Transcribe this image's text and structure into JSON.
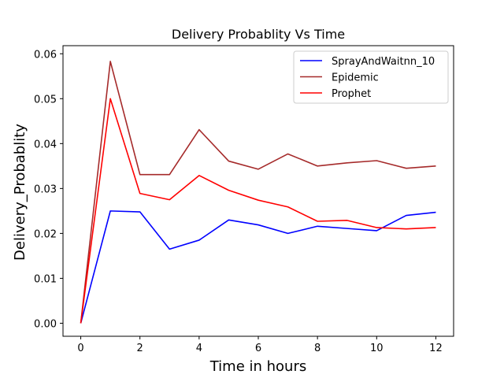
{
  "chart_data": {
    "type": "line",
    "title": "Delivery Probablity Vs Time",
    "xlabel": "Time in hours",
    "ylabel": "Delivery_Probablity",
    "xlim": [
      -0.6,
      12.6
    ],
    "ylim": [
      -0.0029,
      0.0618
    ],
    "xticks": [
      0,
      2,
      4,
      6,
      8,
      10,
      12
    ],
    "yticks": [
      0.0,
      0.01,
      0.02,
      0.03,
      0.04,
      0.05,
      0.06
    ],
    "ytick_labels": [
      "0.00",
      "0.01",
      "0.02",
      "0.03",
      "0.04",
      "0.05",
      "0.06"
    ],
    "grid": false,
    "legend_position": "top-right",
    "x": [
      0,
      1,
      2,
      3,
      4,
      5,
      6,
      7,
      8,
      9,
      10,
      11,
      12
    ],
    "series": [
      {
        "name": "SprayAndWaitnn_10",
        "color": "#0000ff",
        "values": [
          0.0,
          0.025,
          0.0248,
          0.0165,
          0.0185,
          0.023,
          0.0219,
          0.02,
          0.0216,
          0.0211,
          0.0206,
          0.024,
          0.0247
        ]
      },
      {
        "name": "Epidemic",
        "color": "#a52a2a",
        "values": [
          0.0,
          0.0583,
          0.0331,
          0.0331,
          0.0431,
          0.0361,
          0.0343,
          0.0377,
          0.035,
          0.0357,
          0.0362,
          0.0345,
          0.035
        ]
      },
      {
        "name": "Prophet",
        "color": "#ff0000",
        "values": [
          0.0,
          0.05,
          0.0289,
          0.0275,
          0.0329,
          0.0296,
          0.0274,
          0.0259,
          0.0227,
          0.0229,
          0.0213,
          0.021,
          0.0213
        ]
      }
    ]
  }
}
